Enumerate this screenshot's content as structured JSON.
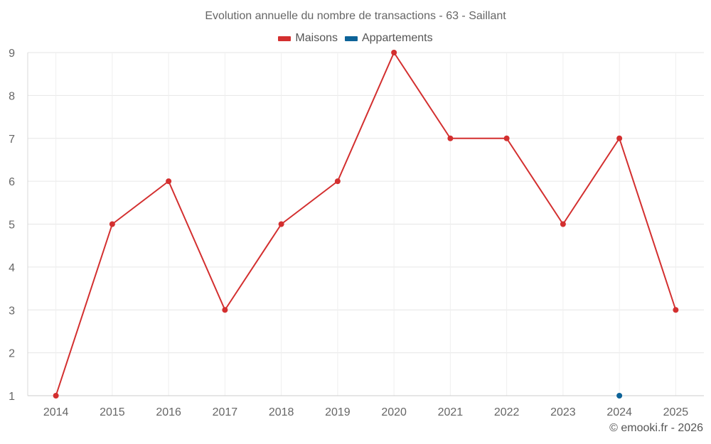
{
  "chart_data": {
    "type": "line",
    "title": "Evolution annuelle du nombre de transactions - 63 - Saillant",
    "categories": [
      "2014",
      "2015",
      "2016",
      "2017",
      "2018",
      "2019",
      "2020",
      "2021",
      "2022",
      "2023",
      "2024",
      "2025"
    ],
    "ylim": [
      1,
      9
    ],
    "yticks": [
      1,
      2,
      3,
      4,
      5,
      6,
      7,
      8,
      9
    ],
    "grid": true,
    "legend_placement": "top-center",
    "series": [
      {
        "name": "Maisons",
        "color": "#d32f2f",
        "values": [
          1,
          5,
          6,
          3,
          5,
          6,
          9,
          7,
          7,
          5,
          7,
          3
        ]
      },
      {
        "name": "Appartements",
        "color": "#0d6398",
        "values": [
          null,
          null,
          null,
          null,
          null,
          null,
          null,
          null,
          null,
          null,
          1,
          null
        ]
      }
    ]
  },
  "credit": "© emooki.fr - 2026"
}
